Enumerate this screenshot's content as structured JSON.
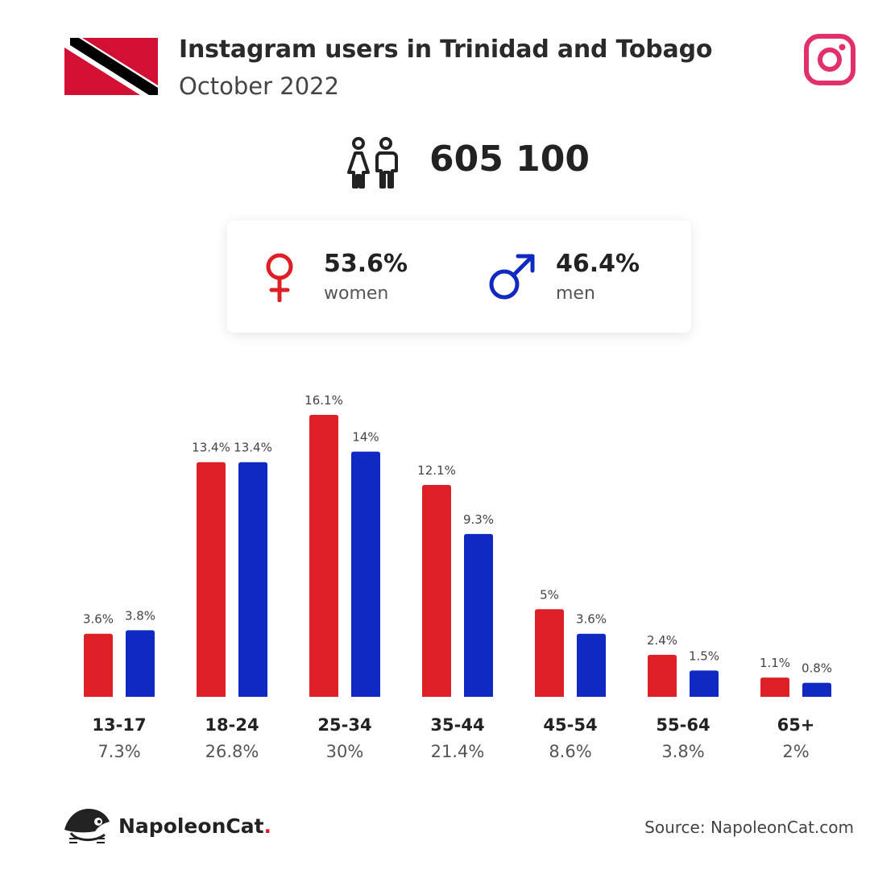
{
  "header": {
    "title": "Instagram users in Trinidad and Tobago",
    "subtitle": "October 2022"
  },
  "total": {
    "value": "605 100",
    "icon": "people-icon"
  },
  "gender": {
    "women": {
      "pct": "53.6%",
      "label": "women",
      "color": "#dd1f26"
    },
    "men": {
      "pct": "46.4%",
      "label": "men",
      "color": "#1029c2"
    }
  },
  "footer": {
    "brand": "NapoleonCat",
    "brand_dot": ".",
    "source": "Source: NapoleonCat.com"
  },
  "colors": {
    "women": "#dd1f26",
    "men": "#1029c2",
    "instagram": "#e1306c"
  },
  "chart_data": {
    "type": "bar",
    "categories": [
      "13-17",
      "18-24",
      "25-34",
      "35-44",
      "45-54",
      "55-64",
      "65+"
    ],
    "category_totals": [
      "7.3%",
      "26.8%",
      "30%",
      "21.4%",
      "8.6%",
      "3.8%",
      "2%"
    ],
    "series": [
      {
        "values": [
          3.6,
          13.4,
          16.1,
          12.1,
          5,
          2.4,
          1.1
        ],
        "labels": [
          "3.6%",
          "13.4%",
          "16.1%",
          "12.1%",
          "5%",
          "2.4%",
          "1.1%"
        ],
        "color": "#dd1f26"
      },
      {
        "values": [
          3.8,
          13.4,
          14,
          9.3,
          3.6,
          1.5,
          0.8
        ],
        "labels": [
          "3.8%",
          "13.4%",
          "14%",
          "9.3%",
          "3.6%",
          "1.5%",
          "0.8%"
        ],
        "color": "#1029c2"
      }
    ],
    "title": "",
    "xlabel": "",
    "ylabel": "",
    "ylim": [
      0,
      16.1
    ],
    "grid": false
  }
}
